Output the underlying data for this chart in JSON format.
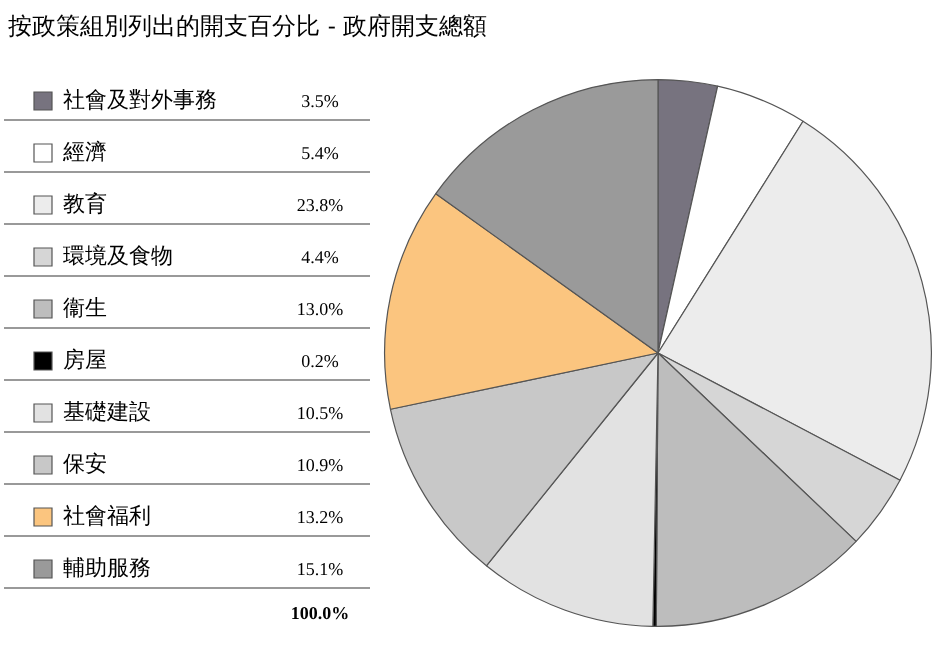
{
  "chart_data": {
    "type": "pie",
    "title": "按政策組別列出的開支百分比 - 政府開支總額",
    "categories": [
      "社會及對外事務",
      "經濟",
      "教育",
      "環境及食物",
      "衞生",
      "房屋",
      "基礎建設",
      "保安",
      "社會福利",
      "輔助服務"
    ],
    "values": [
      3.5,
      5.4,
      23.8,
      4.4,
      13.0,
      0.2,
      10.5,
      10.9,
      13.2,
      15.1
    ],
    "colors": [
      "#77737f",
      "#ffffff",
      "#ececec",
      "#d6d6d6",
      "#bdbdbd",
      "#000000",
      "#e2e2e2",
      "#c8c8c8",
      "#fbc57f",
      "#9a9a9a"
    ],
    "value_labels": [
      "3.5%",
      "5.4%",
      "23.8%",
      "4.4%",
      "13.0%",
      "0.2%",
      "10.5%",
      "10.9%",
      "13.2%",
      "15.1%"
    ],
    "annotations": [
      "100.0%"
    ],
    "legend": "left"
  }
}
